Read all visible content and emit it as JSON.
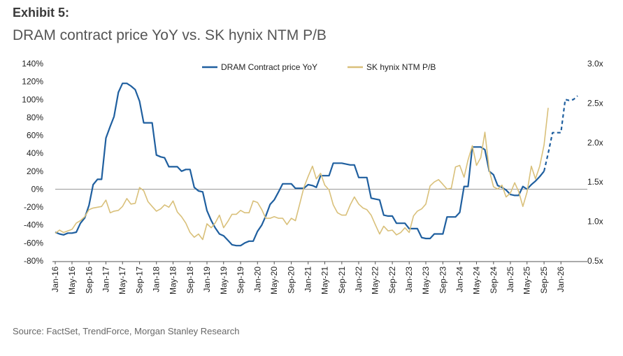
{
  "exhibit_label": "Exhibit 5:",
  "title": "DRAM contract price YoY vs. SK hynix NTM P/B",
  "source": "Source: FactSet, TrendForce, Morgan Stanley Research",
  "chart_data": {
    "type": "line",
    "legend_position": "top-center",
    "grid": false,
    "baseline_at_zero": true,
    "y_left": {
      "min": -0.8,
      "max": 1.4,
      "ticks": [
        1.4,
        1.2,
        1.0,
        0.8,
        0.6,
        0.4,
        0.2,
        0.0,
        -0.2,
        -0.4,
        -0.6,
        -0.8
      ],
      "tick_labels": [
        "140%",
        "120%",
        "100%",
        "80%",
        "60%",
        "40%",
        "20%",
        "0%",
        "-20%",
        "-40%",
        "-60%",
        "-80%"
      ]
    },
    "y_right": {
      "min": 0.5,
      "max": 3.0,
      "ticks": [
        3.0,
        2.5,
        2.0,
        1.5,
        1.0,
        0.5
      ],
      "tick_labels": [
        "3.0x",
        "2.5x",
        "2.0x",
        "1.5x",
        "1.0x",
        "0.5x"
      ]
    },
    "x_ticks": [
      "Jan-16",
      "May-16",
      "Sep-16",
      "Jan-17",
      "May-17",
      "Sep-17",
      "Jan-18",
      "May-18",
      "Sep-18",
      "Jan-19",
      "May-19",
      "Sep-19",
      "Jan-20",
      "May-20",
      "Sep-20",
      "Jan-21",
      "May-21",
      "Sep-21",
      "Jan-22",
      "May-22",
      "Sep-22",
      "Jan-23",
      "May-23",
      "Sep-23",
      "Jan-24",
      "May-24",
      "Sep-24",
      "Jan-25",
      "May-25",
      "Sep-25",
      "Jan-26"
    ],
    "series": [
      {
        "name": "DRAM Contract price YoY",
        "axis": "left",
        "color": "#1f5f9f",
        "points": [
          [
            "2016-01",
            -0.48
          ],
          [
            "2016-02",
            -0.5
          ],
          [
            "2016-03",
            -0.51
          ],
          [
            "2016-04",
            -0.49
          ],
          [
            "2016-05",
            -0.49
          ],
          [
            "2016-06",
            -0.48
          ],
          [
            "2016-07",
            -0.38
          ],
          [
            "2016-08",
            -0.32
          ],
          [
            "2016-09",
            -0.18
          ],
          [
            "2016-10",
            0.05
          ],
          [
            "2016-11",
            0.11
          ],
          [
            "2016-12",
            0.11
          ],
          [
            "2017-01",
            0.57
          ],
          [
            "2017-02",
            0.7
          ],
          [
            "2017-03",
            0.81
          ],
          [
            "2017-04",
            1.08
          ],
          [
            "2017-05",
            1.18
          ],
          [
            "2017-06",
            1.18
          ],
          [
            "2017-07",
            1.15
          ],
          [
            "2017-08",
            1.11
          ],
          [
            "2017-09",
            0.98
          ],
          [
            "2017-10",
            0.74
          ],
          [
            "2017-11",
            0.74
          ],
          [
            "2017-12",
            0.74
          ],
          [
            "2018-01",
            0.38
          ],
          [
            "2018-02",
            0.36
          ],
          [
            "2018-03",
            0.35
          ],
          [
            "2018-04",
            0.25
          ],
          [
            "2018-05",
            0.25
          ],
          [
            "2018-06",
            0.25
          ],
          [
            "2018-07",
            0.2
          ],
          [
            "2018-08",
            0.22
          ],
          [
            "2018-09",
            0.22
          ],
          [
            "2018-10",
            0.02
          ],
          [
            "2018-11",
            -0.02
          ],
          [
            "2018-12",
            -0.03
          ],
          [
            "2019-01",
            -0.24
          ],
          [
            "2019-02",
            -0.35
          ],
          [
            "2019-03",
            -0.43
          ],
          [
            "2019-04",
            -0.5
          ],
          [
            "2019-05",
            -0.52
          ],
          [
            "2019-06",
            -0.57
          ],
          [
            "2019-07",
            -0.62
          ],
          [
            "2019-08",
            -0.63
          ],
          [
            "2019-09",
            -0.63
          ],
          [
            "2019-10",
            -0.6
          ],
          [
            "2019-11",
            -0.58
          ],
          [
            "2019-12",
            -0.58
          ],
          [
            "2020-01",
            -0.47
          ],
          [
            "2020-02",
            -0.4
          ],
          [
            "2020-03",
            -0.3
          ],
          [
            "2020-04",
            -0.17
          ],
          [
            "2020-05",
            -0.12
          ],
          [
            "2020-06",
            -0.03
          ],
          [
            "2020-07",
            0.06
          ],
          [
            "2020-08",
            0.06
          ],
          [
            "2020-09",
            0.06
          ],
          [
            "2020-10",
            0.01
          ],
          [
            "2020-11",
            0.01
          ],
          [
            "2020-12",
            0.01
          ],
          [
            "2021-01",
            0.05
          ],
          [
            "2021-02",
            0.04
          ],
          [
            "2021-03",
            0.02
          ],
          [
            "2021-04",
            0.15
          ],
          [
            "2021-05",
            0.15
          ],
          [
            "2021-06",
            0.15
          ],
          [
            "2021-07",
            0.29
          ],
          [
            "2021-08",
            0.29
          ],
          [
            "2021-09",
            0.29
          ],
          [
            "2021-10",
            0.28
          ],
          [
            "2021-11",
            0.27
          ],
          [
            "2021-12",
            0.27
          ],
          [
            "2022-01",
            0.13
          ],
          [
            "2022-02",
            0.13
          ],
          [
            "2022-03",
            0.13
          ],
          [
            "2022-04",
            -0.1
          ],
          [
            "2022-05",
            -0.11
          ],
          [
            "2022-06",
            -0.12
          ],
          [
            "2022-07",
            -0.29
          ],
          [
            "2022-08",
            -0.3
          ],
          [
            "2022-09",
            -0.3
          ],
          [
            "2022-10",
            -0.38
          ],
          [
            "2022-11",
            -0.38
          ],
          [
            "2022-12",
            -0.38
          ],
          [
            "2023-01",
            -0.44
          ],
          [
            "2023-02",
            -0.44
          ],
          [
            "2023-03",
            -0.44
          ],
          [
            "2023-04",
            -0.54
          ],
          [
            "2023-05",
            -0.55
          ],
          [
            "2023-06",
            -0.55
          ],
          [
            "2023-07",
            -0.5
          ],
          [
            "2023-08",
            -0.5
          ],
          [
            "2023-09",
            -0.5
          ],
          [
            "2023-10",
            -0.31
          ],
          [
            "2023-11",
            -0.31
          ],
          [
            "2023-12",
            -0.31
          ],
          [
            "2024-01",
            -0.26
          ],
          [
            "2024-02",
            0.03
          ],
          [
            "2024-03",
            0.03
          ],
          [
            "2024-04",
            0.47
          ],
          [
            "2024-05",
            0.47
          ],
          [
            "2024-06",
            0.47
          ],
          [
            "2024-07",
            0.44
          ],
          [
            "2024-08",
            0.2
          ],
          [
            "2024-09",
            0.16
          ],
          [
            "2024-10",
            0.04
          ],
          [
            "2024-11",
            0.02
          ],
          [
            "2024-12",
            -0.01
          ],
          [
            "2025-01",
            -0.06
          ],
          [
            "2025-02",
            -0.07
          ],
          [
            "2025-03",
            -0.07
          ],
          [
            "2025-04",
            0.03
          ],
          [
            "2025-05",
            0.0
          ],
          [
            "2025-06",
            0.05
          ],
          [
            "2025-07",
            0.09
          ],
          [
            "2025-08",
            0.14
          ],
          [
            "2025-09",
            0.2
          ]
        ]
      },
      {
        "name": "DRAM Contract price YoY (forecast)",
        "axis": "left",
        "color": "#1f5f9f",
        "dashed": true,
        "points": [
          [
            "2025-09",
            0.2
          ],
          [
            "2025-10",
            0.4
          ],
          [
            "2025-11",
            0.63
          ],
          [
            "2025-12",
            0.63
          ],
          [
            "2026-01",
            0.63
          ],
          [
            "2026-02",
            1.0
          ],
          [
            "2026-03",
            0.99
          ],
          [
            "2026-04",
            1.0
          ],
          [
            "2026-05",
            1.04
          ]
        ]
      },
      {
        "name": "SK hynix NTM P/B",
        "axis": "right",
        "color": "#d9c07a",
        "points": [
          [
            "2016-01",
            0.85
          ],
          [
            "2016-02",
            0.89
          ],
          [
            "2016-03",
            0.86
          ],
          [
            "2016-04",
            0.88
          ],
          [
            "2016-05",
            0.9
          ],
          [
            "2016-06",
            0.98
          ],
          [
            "2016-07",
            1.01
          ],
          [
            "2016-08",
            1.06
          ],
          [
            "2016-09",
            1.15
          ],
          [
            "2016-10",
            1.17
          ],
          [
            "2016-11",
            1.18
          ],
          [
            "2016-12",
            1.19
          ],
          [
            "2017-01",
            1.27
          ],
          [
            "2017-02",
            1.11
          ],
          [
            "2017-03",
            1.13
          ],
          [
            "2017-04",
            1.14
          ],
          [
            "2017-05",
            1.19
          ],
          [
            "2017-06",
            1.29
          ],
          [
            "2017-07",
            1.22
          ],
          [
            "2017-08",
            1.23
          ],
          [
            "2017-09",
            1.43
          ],
          [
            "2017-10",
            1.39
          ],
          [
            "2017-11",
            1.25
          ],
          [
            "2017-12",
            1.19
          ],
          [
            "2018-01",
            1.13
          ],
          [
            "2018-02",
            1.16
          ],
          [
            "2018-03",
            1.21
          ],
          [
            "2018-04",
            1.18
          ],
          [
            "2018-05",
            1.26
          ],
          [
            "2018-06",
            1.12
          ],
          [
            "2018-07",
            1.06
          ],
          [
            "2018-08",
            0.98
          ],
          [
            "2018-09",
            0.86
          ],
          [
            "2018-10",
            0.8
          ],
          [
            "2018-11",
            0.84
          ],
          [
            "2018-12",
            0.77
          ],
          [
            "2019-01",
            0.97
          ],
          [
            "2019-02",
            0.92
          ],
          [
            "2019-03",
            0.98
          ],
          [
            "2019-04",
            1.08
          ],
          [
            "2019-05",
            0.92
          ],
          [
            "2019-06",
            1.0
          ],
          [
            "2019-07",
            1.09
          ],
          [
            "2019-08",
            1.09
          ],
          [
            "2019-09",
            1.14
          ],
          [
            "2019-10",
            1.11
          ],
          [
            "2019-11",
            1.11
          ],
          [
            "2019-12",
            1.26
          ],
          [
            "2020-01",
            1.24
          ],
          [
            "2020-02",
            1.15
          ],
          [
            "2020-03",
            1.04
          ],
          [
            "2020-04",
            1.04
          ],
          [
            "2020-05",
            1.06
          ],
          [
            "2020-06",
            1.04
          ],
          [
            "2020-07",
            1.04
          ],
          [
            "2020-08",
            0.96
          ],
          [
            "2020-09",
            1.04
          ],
          [
            "2020-10",
            1.01
          ],
          [
            "2020-11",
            1.22
          ],
          [
            "2020-12",
            1.43
          ],
          [
            "2021-01",
            1.57
          ],
          [
            "2021-02",
            1.7
          ],
          [
            "2021-03",
            1.54
          ],
          [
            "2021-04",
            1.61
          ],
          [
            "2021-05",
            1.46
          ],
          [
            "2021-06",
            1.4
          ],
          [
            "2021-07",
            1.21
          ],
          [
            "2021-08",
            1.11
          ],
          [
            "2021-09",
            1.08
          ],
          [
            "2021-10",
            1.08
          ],
          [
            "2021-11",
            1.21
          ],
          [
            "2021-12",
            1.31
          ],
          [
            "2022-01",
            1.22
          ],
          [
            "2022-02",
            1.17
          ],
          [
            "2022-03",
            1.15
          ],
          [
            "2022-04",
            1.08
          ],
          [
            "2022-05",
            0.96
          ],
          [
            "2022-06",
            0.84
          ],
          [
            "2022-07",
            0.94
          ],
          [
            "2022-08",
            0.88
          ],
          [
            "2022-09",
            0.89
          ],
          [
            "2022-10",
            0.83
          ],
          [
            "2022-11",
            0.86
          ],
          [
            "2022-12",
            0.92
          ],
          [
            "2023-01",
            0.86
          ],
          [
            "2023-02",
            1.07
          ],
          [
            "2023-03",
            1.13
          ],
          [
            "2023-04",
            1.16
          ],
          [
            "2023-05",
            1.22
          ],
          [
            "2023-06",
            1.45
          ],
          [
            "2023-07",
            1.5
          ],
          [
            "2023-08",
            1.53
          ],
          [
            "2023-09",
            1.47
          ],
          [
            "2023-10",
            1.41
          ],
          [
            "2023-11",
            1.42
          ],
          [
            "2023-12",
            1.69
          ],
          [
            "2024-01",
            1.71
          ],
          [
            "2024-02",
            1.56
          ],
          [
            "2024-03",
            1.78
          ],
          [
            "2024-04",
            1.96
          ],
          [
            "2024-05",
            1.71
          ],
          [
            "2024-06",
            1.81
          ],
          [
            "2024-07",
            2.13
          ],
          [
            "2024-08",
            1.65
          ],
          [
            "2024-09",
            1.44
          ],
          [
            "2024-10",
            1.41
          ],
          [
            "2024-11",
            1.46
          ],
          [
            "2024-12",
            1.31
          ],
          [
            "2025-01",
            1.36
          ],
          [
            "2025-02",
            1.49
          ],
          [
            "2025-03",
            1.38
          ],
          [
            "2025-04",
            1.19
          ],
          [
            "2025-05",
            1.37
          ],
          [
            "2025-06",
            1.7
          ],
          [
            "2025-07",
            1.54
          ],
          [
            "2025-08",
            1.7
          ],
          [
            "2025-09",
            1.97
          ],
          [
            "2025-10",
            2.44
          ]
        ]
      }
    ]
  }
}
